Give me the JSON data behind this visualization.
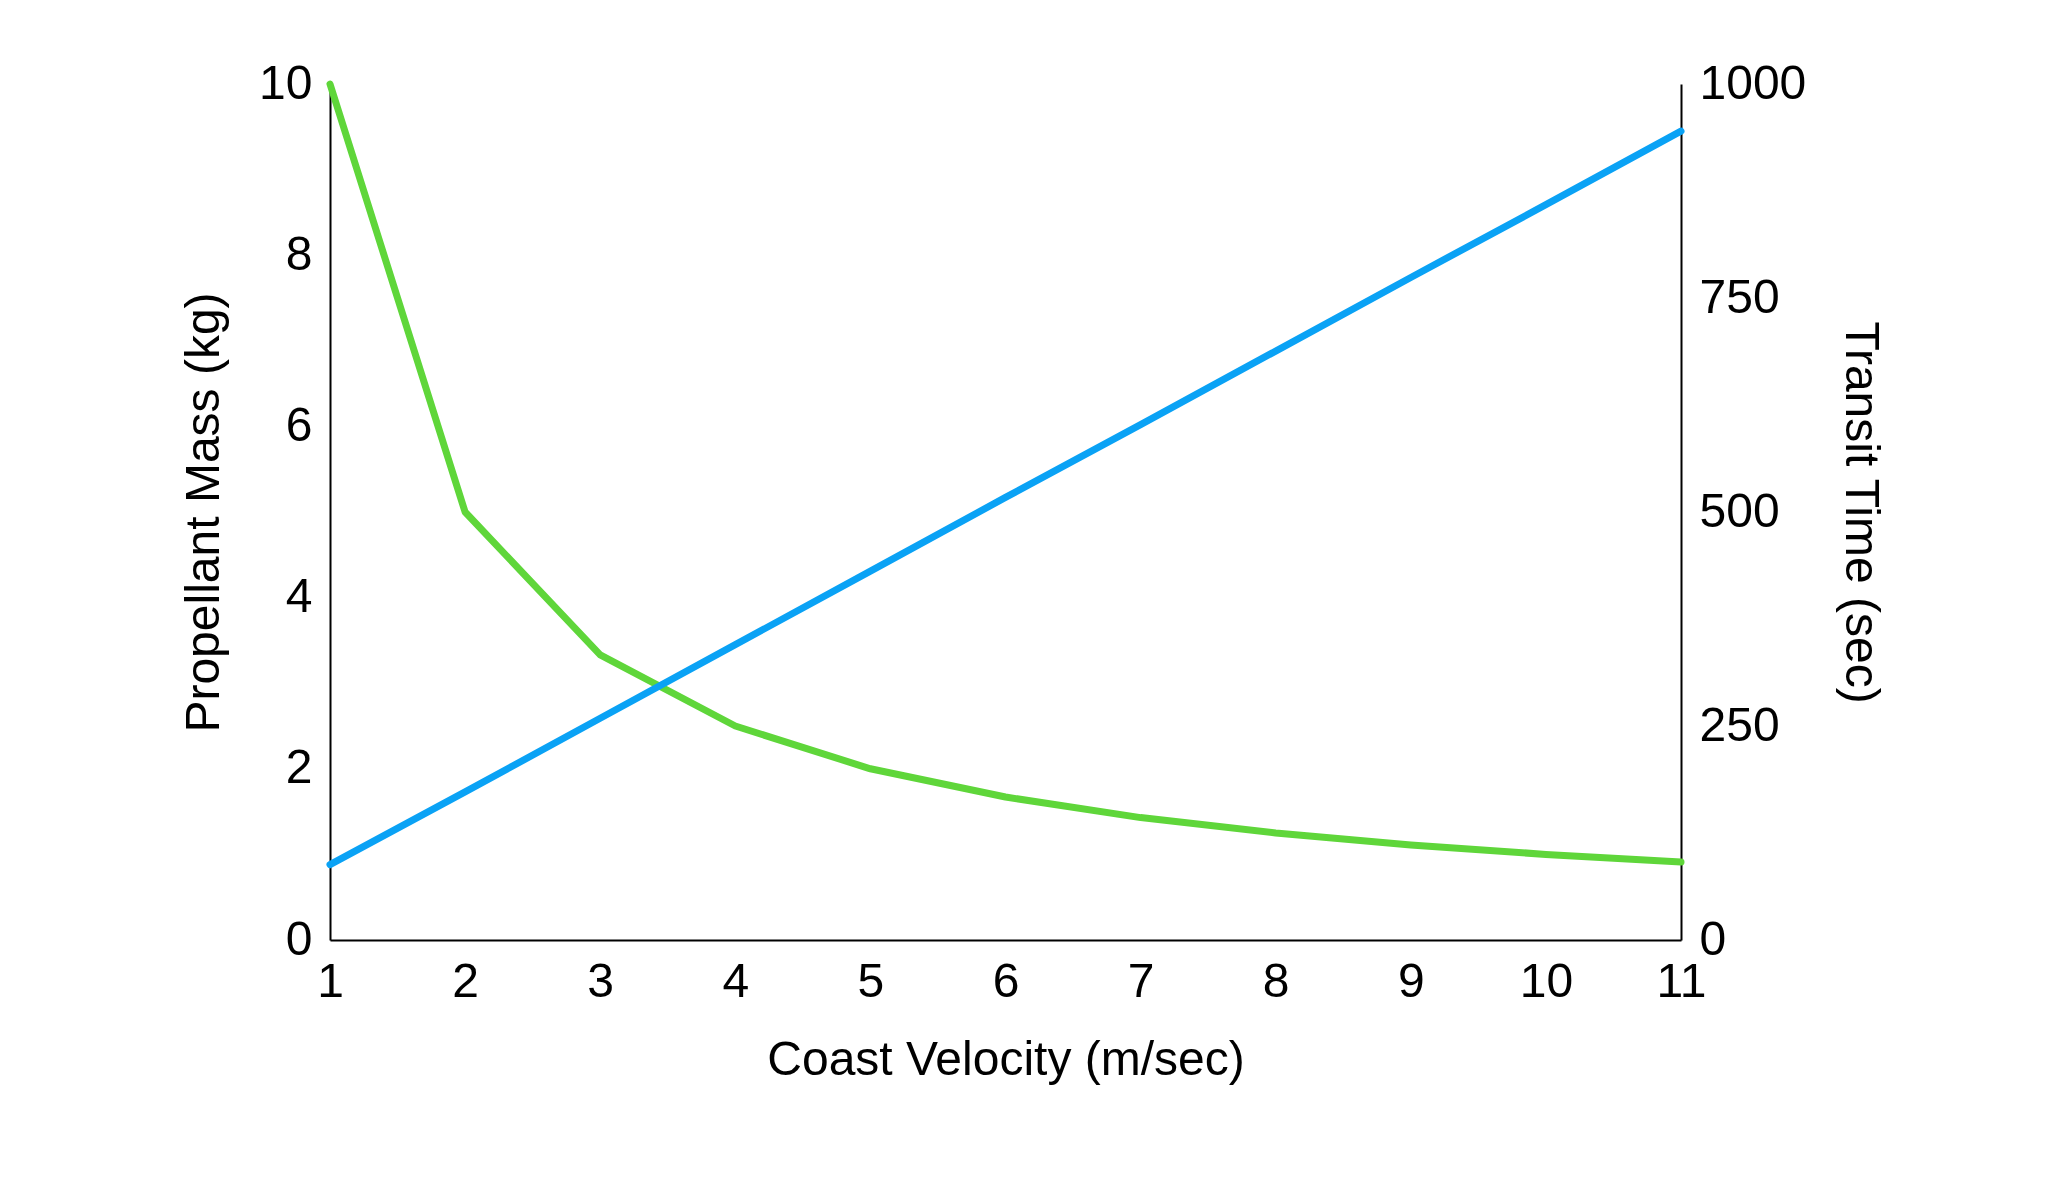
{
  "chart_data": {
    "type": "line",
    "xlabel": "Coast Velocity (m/sec)",
    "ylabel": "Propellant Mass (kg)",
    "y2label": "Transit Time (sec)",
    "x": [
      1,
      2,
      3,
      4,
      5,
      6,
      7,
      8,
      9,
      10,
      11
    ],
    "series": [
      {
        "color": "#5fd63a",
        "values": [
          10,
          5,
          3.33,
          2.5,
          2,
          1.67,
          1.43,
          1.25,
          1.11,
          1,
          0.91
        ]
      },
      {
        "color": "#0aa2f5",
        "axis": "y2",
        "values": [
          88,
          173,
          259,
          345,
          431,
          517,
          602,
          688,
          774,
          859,
          945
        ]
      }
    ],
    "xlim": [
      1,
      11
    ],
    "xticks": [
      1,
      2,
      3,
      4,
      5,
      6,
      7,
      8,
      9,
      10,
      11
    ],
    "ylim": [
      0,
      10
    ],
    "yticks": [
      0,
      2,
      4,
      6,
      8,
      10
    ],
    "y2lim": [
      0,
      1000
    ],
    "y2ticks": [
      0,
      250,
      500,
      750,
      1000
    ],
    "grid": false
  }
}
